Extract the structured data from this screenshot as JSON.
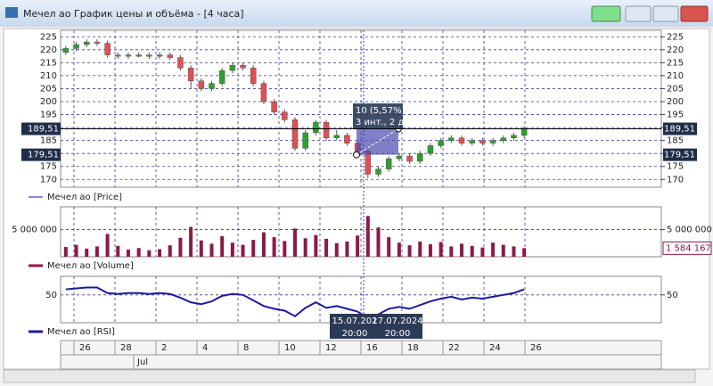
{
  "window": {
    "title": "Мечел ао График цены и объёма - [4 часа]"
  },
  "chart_data": [
    {
      "type": "candlestick",
      "legend": "Мечел ао [Price]",
      "up_color": "#2ca02c",
      "down_color": "#e05050",
      "open": [
        219,
        220.5,
        222,
        223,
        222.5,
        218,
        217.5,
        218,
        218,
        217.5,
        218,
        217,
        213,
        208,
        205,
        207,
        212,
        214,
        213,
        207,
        200,
        196,
        193,
        182,
        188,
        192,
        186,
        187,
        184,
        181,
        172,
        174,
        178,
        179,
        177,
        180,
        183,
        185,
        186,
        184,
        185,
        184,
        185,
        186,
        187
      ],
      "high": [
        221.5,
        223,
        224,
        224,
        223.5,
        219,
        219,
        219,
        219,
        219,
        219,
        218,
        214,
        209,
        208,
        213,
        215,
        215,
        214,
        208,
        201,
        197,
        194,
        189,
        193,
        193,
        189,
        188,
        185,
        182,
        175,
        179,
        180,
        180,
        181,
        184,
        186,
        187,
        187,
        186,
        186,
        186,
        187,
        188,
        190.5
      ],
      "low": [
        218,
        219.5,
        221,
        221.5,
        217,
        216.5,
        216.5,
        217,
        216.5,
        216.5,
        216,
        212,
        205,
        204,
        204,
        206,
        211,
        212,
        206,
        199,
        195,
        192,
        181,
        181,
        187,
        185,
        185,
        183,
        180,
        170.5,
        171,
        173,
        177,
        176,
        176,
        179,
        182,
        184,
        183,
        183,
        183,
        183,
        184,
        185,
        186
      ],
      "close": [
        220.5,
        222,
        223,
        222.5,
        218,
        217.5,
        218,
        218,
        217.5,
        218,
        217,
        213,
        208,
        205,
        207,
        212,
        214,
        213,
        207,
        200,
        196,
        193,
        182,
        188,
        192,
        186,
        187,
        184,
        181,
        172,
        174,
        178,
        179,
        177,
        180,
        183,
        185,
        186,
        184,
        185,
        184,
        185,
        186,
        187,
        189.5
      ],
      "ylim": [
        167,
        227.5
      ],
      "yticks": [
        170,
        175,
        180,
        185,
        190,
        195,
        200,
        205,
        210,
        215,
        220,
        225
      ],
      "markers": [
        {
          "value": 189.51,
          "label": "189,51"
        },
        {
          "value": 179.51,
          "label": "179,51"
        }
      ],
      "measure": {
        "text": "10 (5,57%)",
        "detail": "3 инт., 2 д."
      }
    },
    {
      "type": "bar",
      "legend": "Мечел ао [Volume]",
      "color": "#8b1a4a",
      "values": [
        1800000,
        2200000,
        1500000,
        1900000,
        4200000,
        2000000,
        1300000,
        1600000,
        1200000,
        1400000,
        2100000,
        3500000,
        5500000,
        3000000,
        2400000,
        3800000,
        2600000,
        2200000,
        3100000,
        4500000,
        3600000,
        2900000,
        5200000,
        3400000,
        4000000,
        3300000,
        2500000,
        2800000,
        3900000,
        7500000,
        5400000,
        3600000,
        2600000,
        2100000,
        2800000,
        2300000,
        2700000,
        1900000,
        2400000,
        2000000,
        1700000,
        2600000,
        2200000,
        1900000,
        1584167
      ],
      "ylim": [
        0,
        9200000
      ],
      "yticks": [
        {
          "value": 5000000,
          "label": "5 000 000"
        }
      ],
      "last": {
        "value": 1584167,
        "label": "1 584 167"
      }
    },
    {
      "type": "line",
      "legend": "Мечел ао [RSI]",
      "color": "#1a1aa0",
      "values": [
        56,
        57,
        58,
        58,
        52,
        51,
        52,
        52,
        51,
        52,
        51,
        47,
        42,
        40,
        43,
        49,
        51,
        50,
        44,
        38,
        35,
        33,
        27,
        36,
        42,
        36,
        38,
        35,
        32,
        25,
        29,
        35,
        37,
        35,
        39,
        43,
        46,
        48,
        45,
        47,
        46,
        48,
        50,
        52,
        56
      ],
      "ylim": [
        20,
        70
      ],
      "yticks": [
        50
      ]
    }
  ],
  "x_axis": {
    "days": [
      "26",
      "28",
      "2",
      "4",
      "8",
      "10",
      "12",
      "16",
      "18",
      "22",
      "24",
      "26"
    ],
    "months": [
      "Jul"
    ],
    "cursor": [
      {
        "date": "15.07.202",
        "time": "20:00"
      },
      {
        "date": "17.07.2024",
        "time": "20:00"
      }
    ]
  }
}
